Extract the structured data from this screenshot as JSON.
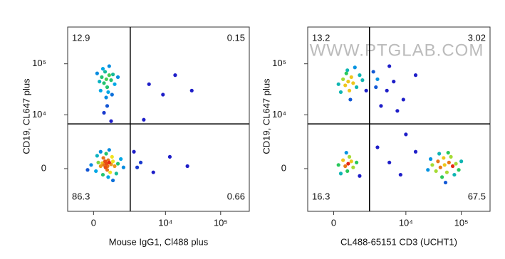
{
  "chart_data": [
    {
      "type": "scatter",
      "xlabel": "Mouse IgG1, Cl488 plus",
      "ylabel": "CD19, CL647 plus",
      "xscale": "asinh",
      "xcofactor": 1000,
      "yscale": "asinh",
      "ycofactor": 1800,
      "xlim": [
        -1300,
        330000
      ],
      "ylim": [
        -6000,
        522000
      ],
      "xticks": [
        0,
        {
          "value": 10000,
          "label": "10⁴"
        },
        {
          "value": 100000,
          "label": "10⁵"
        }
      ],
      "yticks": [
        0,
        {
          "value": 10000,
          "label": "10⁴"
        },
        {
          "value": 100000,
          "label": "10⁵"
        }
      ],
      "gate": {
        "x": 2200,
        "y": 6600
      },
      "quadrant_values": [
        12.9,
        0.15,
        86.3,
        0.66
      ],
      "x": [
        560,
        450,
        700,
        620,
        500,
        380,
        800,
        650,
        520,
        600,
        900,
        300,
        750,
        420,
        1000,
        200,
        850,
        1200,
        100,
        650,
        400,
        1100,
        -100,
        1400,
        550,
        300,
        900,
        150,
        -250,
        1600,
        700,
        560,
        450,
        700,
        600,
        500,
        800,
        350,
        650,
        900,
        400,
        550,
        1000,
        250,
        700,
        300,
        1200,
        600,
        450,
        150,
        850,
        3500,
        6000,
        12000,
        25000,
        5000,
        9000,
        15000,
        2600,
        4000,
        800,
        30000,
        3000
      ],
      "y": [
        400,
        300,
        500,
        200,
        600,
        450,
        350,
        700,
        100,
        -100,
        600,
        200,
        -300,
        900,
        200,
        500,
        1000,
        400,
        -200,
        -700,
        -500,
        -400,
        300,
        800,
        1300,
        1500,
        -1000,
        1100,
        -100,
        100,
        1700,
        50000,
        42000,
        60000,
        35000,
        70000,
        48000,
        55000,
        28000,
        62000,
        80000,
        22000,
        40000,
        45000,
        90000,
        30000,
        55000,
        15000,
        11000,
        65000,
        25000,
        500,
        -300,
        1000,
        200,
        40000,
        25000,
        60000,
        1500,
        8000,
        7500,
        30000,
        100
      ]
    },
    {
      "type": "scatter",
      "xlabel": "CL488-65151 CD3 (UCHT1)",
      "ylabel": "CD19, CL647 plus",
      "watermark": "WWW.PTGLAB.COM",
      "xscale": "asinh",
      "xcofactor": 1000,
      "yscale": "asinh",
      "ycofactor": 1800,
      "xlim": [
        -1300,
        330000
      ],
      "ylim": [
        -6000,
        522000
      ],
      "xticks": [
        0,
        {
          "value": 10000,
          "label": "10⁴"
        },
        {
          "value": 100000,
          "label": "10⁵"
        }
      ],
      "yticks": [
        0,
        {
          "value": 10000,
          "label": "10⁴"
        },
        {
          "value": 100000,
          "label": "10⁵"
        }
      ],
      "gate": {
        "x": 2100,
        "y": 6600
      },
      "quadrant_values": [
        13.2,
        3.02,
        16.3,
        67.5
      ],
      "x": [
        640,
        500,
        800,
        700,
        550,
        900,
        400,
        1100,
        600,
        1300,
        300,
        750,
        1500,
        200,
        1000,
        1800,
        3000,
        4500,
        2500,
        6000,
        9000,
        3500,
        15000,
        2800,
        5000,
        7000,
        640,
        500,
        800,
        600,
        400,
        900,
        700,
        300,
        1100,
        550,
        200,
        1300,
        50000,
        42000,
        60000,
        55000,
        38000,
        70000,
        48000,
        35000,
        80000,
        45000,
        65000,
        30000,
        90000,
        58000,
        28000,
        100000,
        40000,
        75000,
        25000,
        52000,
        5000,
        3000,
        10000,
        8000,
        15000
      ],
      "y": [
        45000,
        38000,
        55000,
        30000,
        65000,
        42000,
        50000,
        35000,
        75000,
        60000,
        28000,
        20000,
        48000,
        40000,
        85000,
        30000,
        50000,
        30000,
        70000,
        45000,
        20000,
        15000,
        60000,
        35000,
        90000,
        12000,
        400,
        200,
        600,
        -200,
        700,
        100,
        1000,
        -400,
        500,
        1400,
        300,
        -600,
        300,
        100,
        500,
        -300,
        600,
        200,
        900,
        -200,
        400,
        -700,
        1000,
        300,
        -100,
        1400,
        800,
        600,
        1300,
        -500,
        -100,
        -1200,
        500,
        2000,
        4000,
        -500,
        1500
      ]
    }
  ]
}
